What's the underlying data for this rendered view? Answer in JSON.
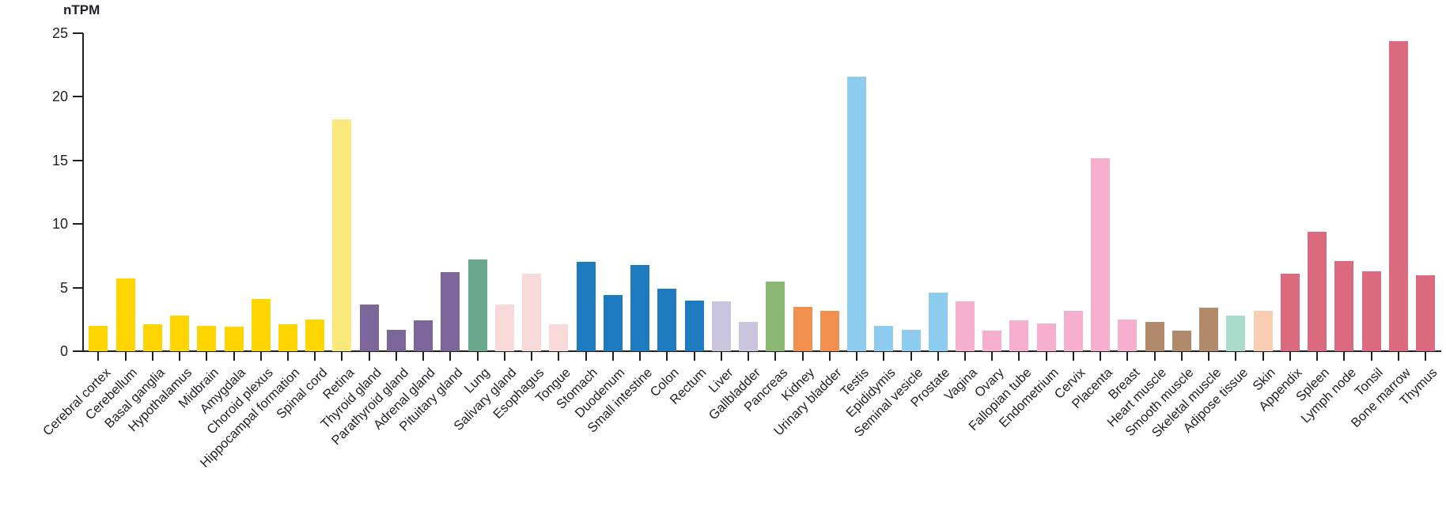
{
  "chart_data": {
    "type": "bar",
    "title": "",
    "ylabel": "nTPM",
    "xlabel": "",
    "ylim": [
      0,
      25
    ],
    "yticks": [
      0,
      5,
      10,
      15,
      20,
      25
    ],
    "grid": false,
    "legend": "none",
    "categories": [
      "Cerebral cortex",
      "Cerebellum",
      "Basal ganglia",
      "Hypothalamus",
      "Midbrain",
      "Amygdala",
      "Choroid plexus",
      "Hippocampal formation",
      "Spinal cord",
      "Retina",
      "Thyroid gland",
      "Parathyroid gland",
      "Adrenal gland",
      "Pituitary gland",
      "Lung",
      "Salivary gland",
      "Esophagus",
      "Tongue",
      "Stomach",
      "Duodenum",
      "Small intestine",
      "Colon",
      "Rectum",
      "Liver",
      "Gallbladder",
      "Pancreas",
      "Kidney",
      "Urinary bladder",
      "Testis",
      "Epididymis",
      "Seminal vesicle",
      "Prostate",
      "Vagina",
      "Ovary",
      "Fallopian tube",
      "Endometrium",
      "Cervix",
      "Placenta",
      "Breast",
      "Heart muscle",
      "Smooth muscle",
      "Skeletal muscle",
      "Adipose tissue",
      "Skin",
      "Appendix",
      "Spleen",
      "Lymph node",
      "Tonsil",
      "Bone marrow",
      "Thymus"
    ],
    "values": [
      2.0,
      5.7,
      2.1,
      2.8,
      2.0,
      1.9,
      4.1,
      2.1,
      2.5,
      18.2,
      3.7,
      1.7,
      2.4,
      6.2,
      7.2,
      3.7,
      6.1,
      2.1,
      7.0,
      4.4,
      6.8,
      4.9,
      4.0,
      3.9,
      2.3,
      5.5,
      3.5,
      3.2,
      21.6,
      2.0,
      1.7,
      4.6,
      3.9,
      1.6,
      2.4,
      2.2,
      3.2,
      15.2,
      2.5,
      2.3,
      1.6,
      3.4,
      2.8,
      3.2,
      6.1,
      9.4,
      7.1,
      6.3,
      24.4,
      6.0
    ],
    "bar_colors": [
      "#FFD500",
      "#FFD500",
      "#FFD500",
      "#FFD500",
      "#FFD500",
      "#FFD500",
      "#FFD500",
      "#FFD500",
      "#FFD500",
      "#FAE87C",
      "#7C6599",
      "#7C6599",
      "#7C6599",
      "#7C6599",
      "#69A88D",
      "#F9DADB",
      "#F9DADB",
      "#F9DADB",
      "#1E7BBF",
      "#1E7BBF",
      "#1E7BBF",
      "#1E7BBF",
      "#1E7BBF",
      "#CBC4DF",
      "#CBC4DF",
      "#8BB873",
      "#F2914F",
      "#F2914F",
      "#8DCBEF",
      "#8DCBEF",
      "#8DCBEF",
      "#8DCBEF",
      "#F6AFCF",
      "#F6AFCF",
      "#F6AFCF",
      "#F6AFCF",
      "#F6AFCF",
      "#F6AFCF",
      "#F6AFCF",
      "#B08A6A",
      "#B08A6A",
      "#B08A6A",
      "#A9DCCB",
      "#FACDB3",
      "#DB6A7F",
      "#DB6A7F",
      "#DB6A7F",
      "#DB6A7F",
      "#DB6A7F",
      "#DB6A7F"
    ],
    "axis_color": "#231f20",
    "text_color": "#1e2029"
  }
}
